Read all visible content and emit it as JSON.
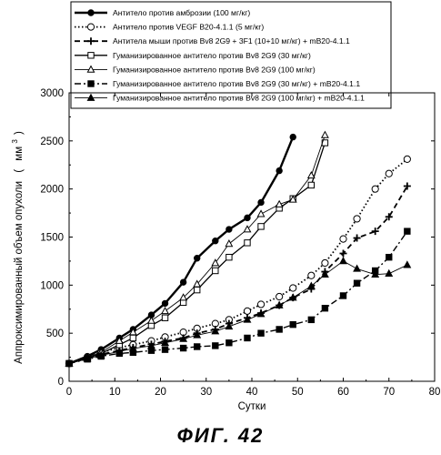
{
  "figure_caption": "ФИГ. 42",
  "chart_data": {
    "type": "line",
    "title": "",
    "xlabel": "Сутки",
    "ylabel": "Аппроксимированный объем опухоли",
    "ylabel_unit": "мм",
    "ylabel_unit_power": "3",
    "xlim": [
      0,
      80
    ],
    "ylim": [
      0,
      3000
    ],
    "xticks": [
      0,
      10,
      20,
      30,
      40,
      50,
      60,
      70,
      80
    ],
    "yticks": [
      0,
      500,
      1000,
      1500,
      2000,
      2500,
      3000
    ],
    "grid": false,
    "legend_position": "top",
    "series": [
      {
        "name": "Антитело против амброзии (100 мг/кг)",
        "marker": "filled-circle",
        "dash": "solid-thick",
        "color": "#000000",
        "x": [
          0,
          4,
          7,
          11,
          14,
          18,
          21,
          25,
          28,
          32,
          35,
          39,
          42,
          46,
          49
        ],
        "y": [
          185,
          260,
          330,
          450,
          540,
          690,
          810,
          1030,
          1280,
          1460,
          1580,
          1700,
          1860,
          2190,
          2540
        ]
      },
      {
        "name": "Антитело против VEGF B20-4.1.1 (5 мг/кг)",
        "marker": "open-circle",
        "dash": "dotted",
        "color": "#000000",
        "x": [
          0,
          4,
          7,
          11,
          14,
          18,
          21,
          25,
          28,
          32,
          35,
          39,
          42,
          46,
          49,
          53,
          56,
          60,
          63,
          67,
          70,
          74
        ],
        "y": [
          185,
          250,
          300,
          350,
          380,
          420,
          460,
          510,
          550,
          600,
          640,
          730,
          800,
          880,
          970,
          1100,
          1230,
          1480,
          1690,
          2000,
          2160,
          2310
        ]
      },
      {
        "name": "Антитела мыши против Bv8 2G9 + 3F1 (10+10 мг/кг) + mB20-4.1.1",
        "marker": "plus",
        "dash": "dashed",
        "color": "#000000",
        "x": [
          0,
          4,
          7,
          11,
          14,
          18,
          21,
          25,
          28,
          32,
          35,
          39,
          42,
          46,
          49,
          53,
          56,
          60,
          63,
          67,
          70,
          74
        ],
        "y": [
          185,
          240,
          280,
          320,
          350,
          385,
          415,
          450,
          500,
          540,
          600,
          660,
          710,
          790,
          870,
          960,
          1140,
          1330,
          1490,
          1560,
          1710,
          2030
        ]
      },
      {
        "name": "Гуманизированное антитело против Bv8 2G9 (30 мг/кг)",
        "marker": "open-square",
        "dash": "solid",
        "color": "#000000",
        "x": [
          0,
          4,
          7,
          11,
          14,
          18,
          21,
          25,
          28,
          32,
          35,
          39,
          42,
          46,
          49,
          53,
          56
        ],
        "y": [
          185,
          240,
          290,
          380,
          450,
          580,
          660,
          820,
          950,
          1150,
          1290,
          1440,
          1610,
          1800,
          1900,
          2040,
          2480
        ]
      },
      {
        "name": "Гуманизированное антитело против Bv8 2G9 (100 мг/кг)",
        "marker": "open-triangle",
        "dash": "solid-thin",
        "color": "#000000",
        "x": [
          0,
          4,
          7,
          11,
          14,
          18,
          21,
          25,
          28,
          32,
          35,
          39,
          42,
          46,
          49,
          53,
          56
        ],
        "y": [
          185,
          250,
          300,
          420,
          510,
          630,
          730,
          870,
          1010,
          1230,
          1430,
          1580,
          1740,
          1840,
          1890,
          2140,
          2560
        ]
      },
      {
        "name": "Гуманизированное антитело против Bv8 2G9 (30 мг/кг) + mB20-4.1.1",
        "marker": "filled-square",
        "dash": "dash-dot",
        "color": "#000000",
        "x": [
          0,
          4,
          7,
          11,
          14,
          18,
          21,
          25,
          28,
          32,
          35,
          39,
          42,
          46,
          49,
          53,
          56,
          60,
          63,
          67,
          70,
          74
        ],
        "y": [
          185,
          230,
          260,
          290,
          300,
          320,
          330,
          345,
          360,
          370,
          400,
          450,
          500,
          540,
          590,
          640,
          760,
          890,
          1020,
          1150,
          1290,
          1560
        ]
      },
      {
        "name": "Гуманизированное антитело против Bv8 2G9 (100 мг/кг) + mB20-4.1.1",
        "marker": "filled-triangle",
        "dash": "solid-thin",
        "color": "#000000",
        "x": [
          0,
          4,
          7,
          11,
          14,
          18,
          21,
          25,
          28,
          32,
          35,
          39,
          42,
          46,
          49,
          53,
          56,
          60,
          63,
          67,
          70,
          74
        ],
        "y": [
          185,
          235,
          270,
          310,
          340,
          370,
          400,
          440,
          480,
          520,
          570,
          640,
          700,
          790,
          870,
          990,
          1110,
          1250,
          1170,
          1110,
          1120,
          1210
        ]
      }
    ]
  }
}
